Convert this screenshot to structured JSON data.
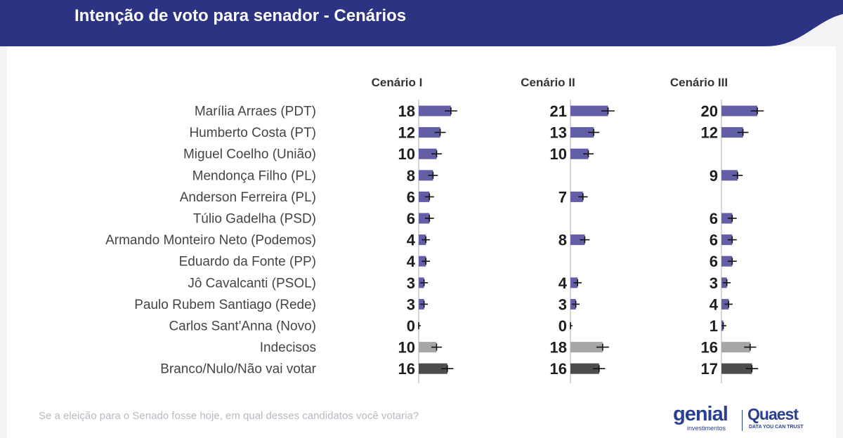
{
  "page": {
    "title": "Intenção de voto para senador - Cenários",
    "question": "Se a eleição para o Senado fosse hoje, em qual desses candidatos você votaria?",
    "logos": {
      "genial_word": "genial",
      "genial_sub": "investimentos",
      "quaest_word": "Quaest",
      "quaest_sub": "DATA YOU CAN TRUST"
    },
    "colors": {
      "header": "#2c3383",
      "candidate_bar": "#625fa7",
      "undecided_bar": "#a6a6a6",
      "blank_bar": "#4d4d4d"
    }
  },
  "chart_data": {
    "type": "bar",
    "orientation": "horizontal",
    "title": "Intenção de voto para senador - Cenários",
    "categories": [
      "Marília Arraes (PDT)",
      "Humberto Costa (PT)",
      "Miguel Coelho (União)",
      "Mendonça Filho (PL)",
      "Anderson Ferreira (PL)",
      "Túlio Gadelha (PSD)",
      "Armando Monteiro Neto (Podemos)",
      "Eduardo da Fonte (PP)",
      "Jô Cavalcanti (PSOL)",
      "Paulo Rubem Santiago (Rede)",
      "Carlos Sant'Anna (Novo)",
      "Indecisos",
      "Branco/Nulo/Não vai votar"
    ],
    "series": [
      {
        "name": "Cenário I",
        "values": [
          18,
          12,
          10,
          8,
          6,
          6,
          4,
          4,
          3,
          3,
          0,
          10,
          16
        ]
      },
      {
        "name": "Cenário II",
        "values": [
          21,
          13,
          10,
          null,
          7,
          null,
          8,
          null,
          4,
          3,
          0,
          18,
          16
        ]
      },
      {
        "name": "Cenário III",
        "values": [
          20,
          12,
          null,
          9,
          null,
          6,
          6,
          6,
          3,
          4,
          1,
          16,
          17
        ]
      }
    ],
    "error_bars": true,
    "grid": false
  }
}
